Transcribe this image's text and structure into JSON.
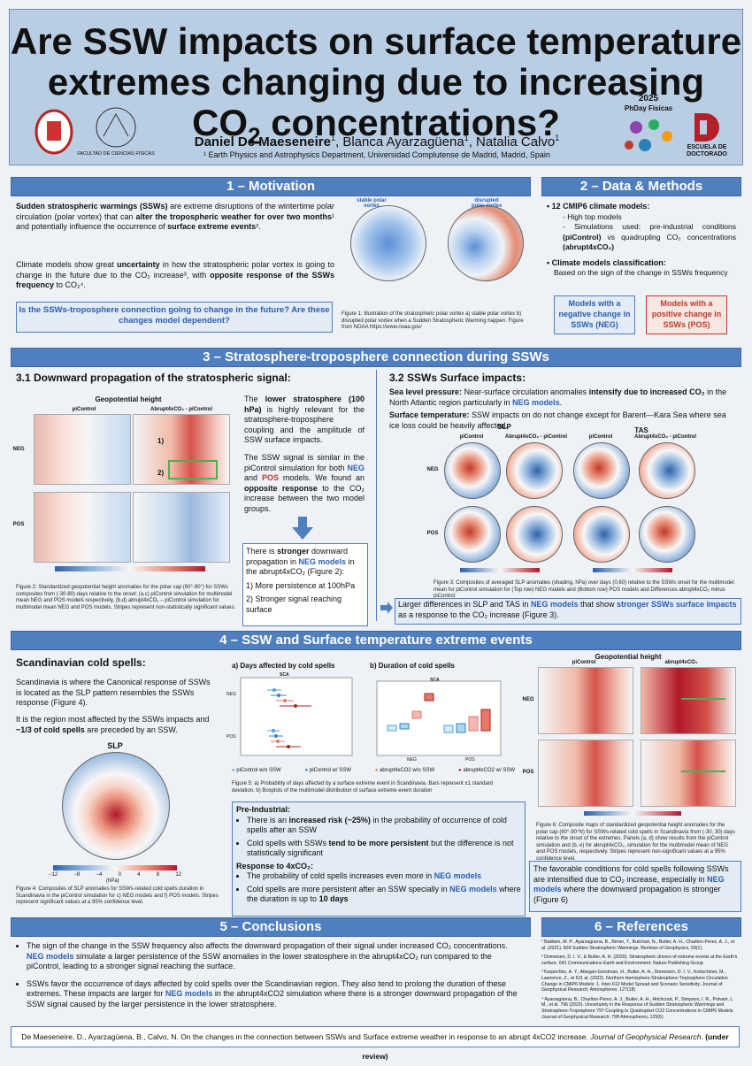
{
  "header": {
    "title_line1": "Are SSW impacts on surface temperature",
    "title_line2": "extremes changing due to increasing",
    "title_line3": [
      "CO",
      "2",
      " concentrations?"
    ],
    "authors": [
      "Daniel De Maeseneire",
      "1",
      ", Blanca Ayarzagüena",
      "1",
      ", Natalia Calvo",
      "1"
    ],
    "affiliation": "¹ Earth Physics and Astrophysics Department, Universidad Complutense de Madrid, Madrid, Spain",
    "faculty": "FACULTAD DE CIENCIAS FÍSICAS",
    "event_year": "2025",
    "event_name": "PhDay Físicas",
    "school": "ESCUELA DE DOCTORADO"
  },
  "motivation": {
    "heading": "1 – Motivation",
    "p1": [
      "Sudden stratospheric warmings (SSWs)",
      " are extreme disruptions of the wintertime polar circulation (polar vortex) that can ",
      "alter the tropospheric weather for over two months",
      "¹ and potentially influence the occurrence of ",
      "surface extreme events",
      "²."
    ],
    "p2": [
      "Climate models show great ",
      "uncertainty",
      " in how the stratospheric polar vortex is going to change in the future due to the CO₂ increase³, with ",
      "opposite response of the SSWs frequency",
      " to CO₂⁴."
    ],
    "question": "Is the SSWs-troposphere connection going to change in the future? Are these changes model dependent?",
    "fig_labels": [
      "stable polar vortex",
      "disrupted polar vortex"
    ],
    "caption": "Figure 1: Illustration of the stratospheric polar vortex a) stable polar vortex b) disrupted polar vortex when a Sudden Stratospheric Warming happen. Figure from NOAA https://www.noaa.gov/"
  },
  "methods": {
    "heading": "2 – Data & Methods",
    "item1": "12 CMIP6 climate models:",
    "sub1": "High top models",
    "sub2": [
      "Simulations used: pre-industrial conditions ",
      "(piControl)",
      " vs quadrupling CO₂ concentrations ",
      "(abrupt4xCO₂)"
    ],
    "item2": "Climate models classification:",
    "item2_text": "Based on the sign of the change in SSWs frequency",
    "neg_box": "Models with a negative change in SSWs (NEG)",
    "pos_box": "Models with a positive change in SSWs (POS)"
  },
  "connection": {
    "heading": "3 – Stratosphere-troposphere connection during SSWs",
    "sub1": "3.1 Downward propagation of the stratospheric signal:",
    "fig2_title": "Geopotential height",
    "fig2_cols": [
      "piControl",
      "Abrupt4xCO₂ - piControl"
    ],
    "fig2_rows": [
      "NEG",
      "POS"
    ],
    "fig2_marks": [
      "1)",
      "2)"
    ],
    "p1": [
      "The ",
      "lower stratosphere (100 hPa)",
      " is highly relevant for the stratosphere-troposphere coupling and the amplitude of SSW surface impacts."
    ],
    "p2": [
      "The SSW signal is similar in the piControl simulation for both ",
      "NEG",
      " and ",
      "POS",
      " models. We found an ",
      "opposite response",
      " to the CO₂ increase between the two model groups."
    ],
    "box": [
      "There is ",
      "stronger",
      " downward propagation in ",
      "NEG models",
      " in the abrupt4xCO₂ (Figure 2):"
    ],
    "box_items": [
      "1)  More persistence at 100hPa",
      "2)  Stronger signal reaching surface"
    ],
    "caption2": "Figure 2: Standardized geopotential height anomalies for the polar cap (60°-90°) for SSWs composites from (-30-80) days relative to the onset: (a,c) piControl simulation for multimodel mean NEG and POS models respectively, (b,d) abrupt4xCO₂ – piControl simulation for multimodel mean NEG and POS models. Stripes represent non-statistically significant values.",
    "sub2": "3.2 SSWs Surface impacts:",
    "p3": [
      "Sea level pressure:",
      " Near-surface circulation anomalies ",
      "intensify due to increased CO₂",
      " in the North Atlantic region particularly in ",
      "NEG models",
      "."
    ],
    "p4": [
      "Surface temperature:",
      " SSW impacts on do not change except for Barent—Kara Sea where sea ice loss could be heavily affected."
    ],
    "fig3_groups": [
      "SLP",
      "TAS"
    ],
    "fig3_cols": [
      "piControl",
      "Abrupt4xCO₂ - piControl",
      "piControl",
      "Abrupt4xCO₂ - piControl"
    ],
    "fig3_rows": [
      "NEG",
      "POS"
    ],
    "caption3": "Figure 3: Composites of averaged SLP anomalies (shading, hPa) over days (0,60) relative to the SSWs onset for the multimodel mean for piControl simulation for (Top row) NEG models and (Bottom row) POS models and Differences abrupt4xCO₂ minus piControl",
    "box2": [
      "Larger differences in SLP and TAS in ",
      "NEG models",
      " that show ",
      "stronger SSWs surface impacts",
      " as a response to the CO₂ increase (Figure 3)."
    ]
  },
  "extremes": {
    "heading": "4 – SSW and Surface temperature extreme events",
    "sub": "Scandinavian cold spells:",
    "p1": "Scandinavia is where the Canonical response of SSWs is located as the SLP pattern resembles the SSWs response (Figure 4).",
    "p2": [
      "It is the region most affected by the SSWs impacts and ",
      "~1/3 of cold spells",
      " are preceded by an SSW."
    ],
    "fig4_title": "SLP",
    "fig4_ticks": [
      "−12",
      "−8",
      "−4",
      "0",
      "4",
      "8",
      "12"
    ],
    "fig4_unit": "(hPa)",
    "caption4": "Figure 4: Composites of SLP anomalies for SSWs-related cold spells duration in Scandinavia in the piControl simulation for c) NEG models and f) POS models. Stripes represent significant values at a 95% confidence level.",
    "fig5a": "a)  Days affected by cold spells",
    "fig5b": "b)  Duration of cold spells",
    "fig5_region": "SCA",
    "fig5_groups": [
      "NEG",
      "POS"
    ],
    "fig5_legend": [
      "piControl w/o SSW",
      "piControl w/ SSW",
      "abrupt4xCO2 w/o SSW",
      "abrupt4xCO2 w/ SSW"
    ],
    "caption5": "Figure 5: a) Probability of days affected by a surface extreme event in Scandinavia. Bars represent ±1 standard deviation. b) Boxplots of the multimodel distribution of surface extreme event duration",
    "box_h1": "Pre-Industrial:",
    "box_b1": [
      "There is an ",
      "increased risk (~25%)",
      " in the probability of occurrence of cold spells after an SSW"
    ],
    "box_b2": [
      "Cold spells with SSWs ",
      "tend to be more persistent",
      " but the difference is not statistically significant"
    ],
    "box_h2": "Response to 4xCO₂:",
    "box_b3": [
      "The probability of cold spells increases even more in ",
      "NEG models"
    ],
    "box_b4": [
      "Cold spells are more persistent after an SSW specially in ",
      "NEG models",
      " where the duration is up to ",
      "10 days"
    ],
    "fig6_title": "Geopotential height",
    "fig6_cols": [
      "piControl",
      "abrupt4xCO₂"
    ],
    "fig6_rows": [
      "NEG",
      "POS"
    ],
    "caption6": "Figure 6: Composite maps of standardized geopotential height anomalies for the polar cap (60°-90°N) for SSWs-related cold spells in Scandinavia from (-30, 30) days relative to the onset of the extremes. Panels (a, d) show results from the piControl simulation and (b, e) for abrupt4xCO₂, simulation for the multimodel mean of NEG and POS models, respectively. Stripes represent non-significant values at a 95% confidence level.",
    "box2": [
      "The favorable conditions for cold spells following SSWs are intensified due to CO₂ increase, especially in ",
      "NEG models",
      " where the downward propagation is stronger (Figure 6)"
    ]
  },
  "conclusions": {
    "heading": "5 – Conclusions",
    "b1": [
      "The sign of the change in the SSW frequency also affects the downward propagation of their signal under increased CO₂ concentrations. ",
      "NEG models",
      " simulate a larger persistence of the SSW anomalies in the lower stratosphere in the abrupt4xCO₂ run compared to the piControl, leading to a stronger signal reaching the surface."
    ],
    "b2": [
      "SSWs favor the occurrence of days affected by cold spells over the Scandinavian region. They also tend to prolong the duration of these extremes. These impacts are larger for ",
      "NEG models",
      " in the abrupt4xCO2 simulation where there is a stronger downward propagation of the SSW signal caused by the larger persistence in the lower stratosphere."
    ]
  },
  "references": {
    "heading": "6 – References",
    "items": [
      "¹ Baldwin, M. P., Ayarzagüena, B., Birner, T., Butchart, N., Butler, A. H., Charlton-Perez, A. J., et al. (2021). 609 Sudden Stratospheric Warmings. Reviews of Geophysics, 59(1).",
      "² Domeisen, D. I. V., & Butler, A. H. (2020). Stratospheric drivers of extreme events at the Earth's surface. 641 Communications Earth and Environment. Nature Publishing Group",
      "³ Karpechko, A. Y., Afargan-Gerstman, H., Butler, A. H., Domeisen, D. I. V., Kretschmer, M., Lawrence, Z., et 611 al. (2022). Northern Hemisphere Stratosphere-Troposphere Circulation Change in CMIP6 Models: 1. Inter-612 Model Spread and Scenario Sensitivity. Journal of Geophysical Research: Atmospheres, 127(18)",
      "⁴ Ayarzagüena, B., Charlton-Perez, A. J., Butler, A. H., Hitchcock, P., Simpson, I. R., Polvani, L. M., et al. 796 (2020). Uncertainty in the Response of Sudden Stratospheric Warmings and Stratosphere-Troposphere 797 Coupling to Quadrupled CO2 Concentrations in CMIP6 Models. Journal of Geophysical Research: 798 Atmospheres, 125(6)."
    ]
  },
  "footer": [
    "De Maeseneire, D., Ayarzagüena, B., Calvo, N. On the changes in the connection between SSWs and Surface extreme weather in response to an abrupt 4xCO2 increase. ",
    "Journal of Geophysical Research",
    ". ",
    "(under review)"
  ]
}
